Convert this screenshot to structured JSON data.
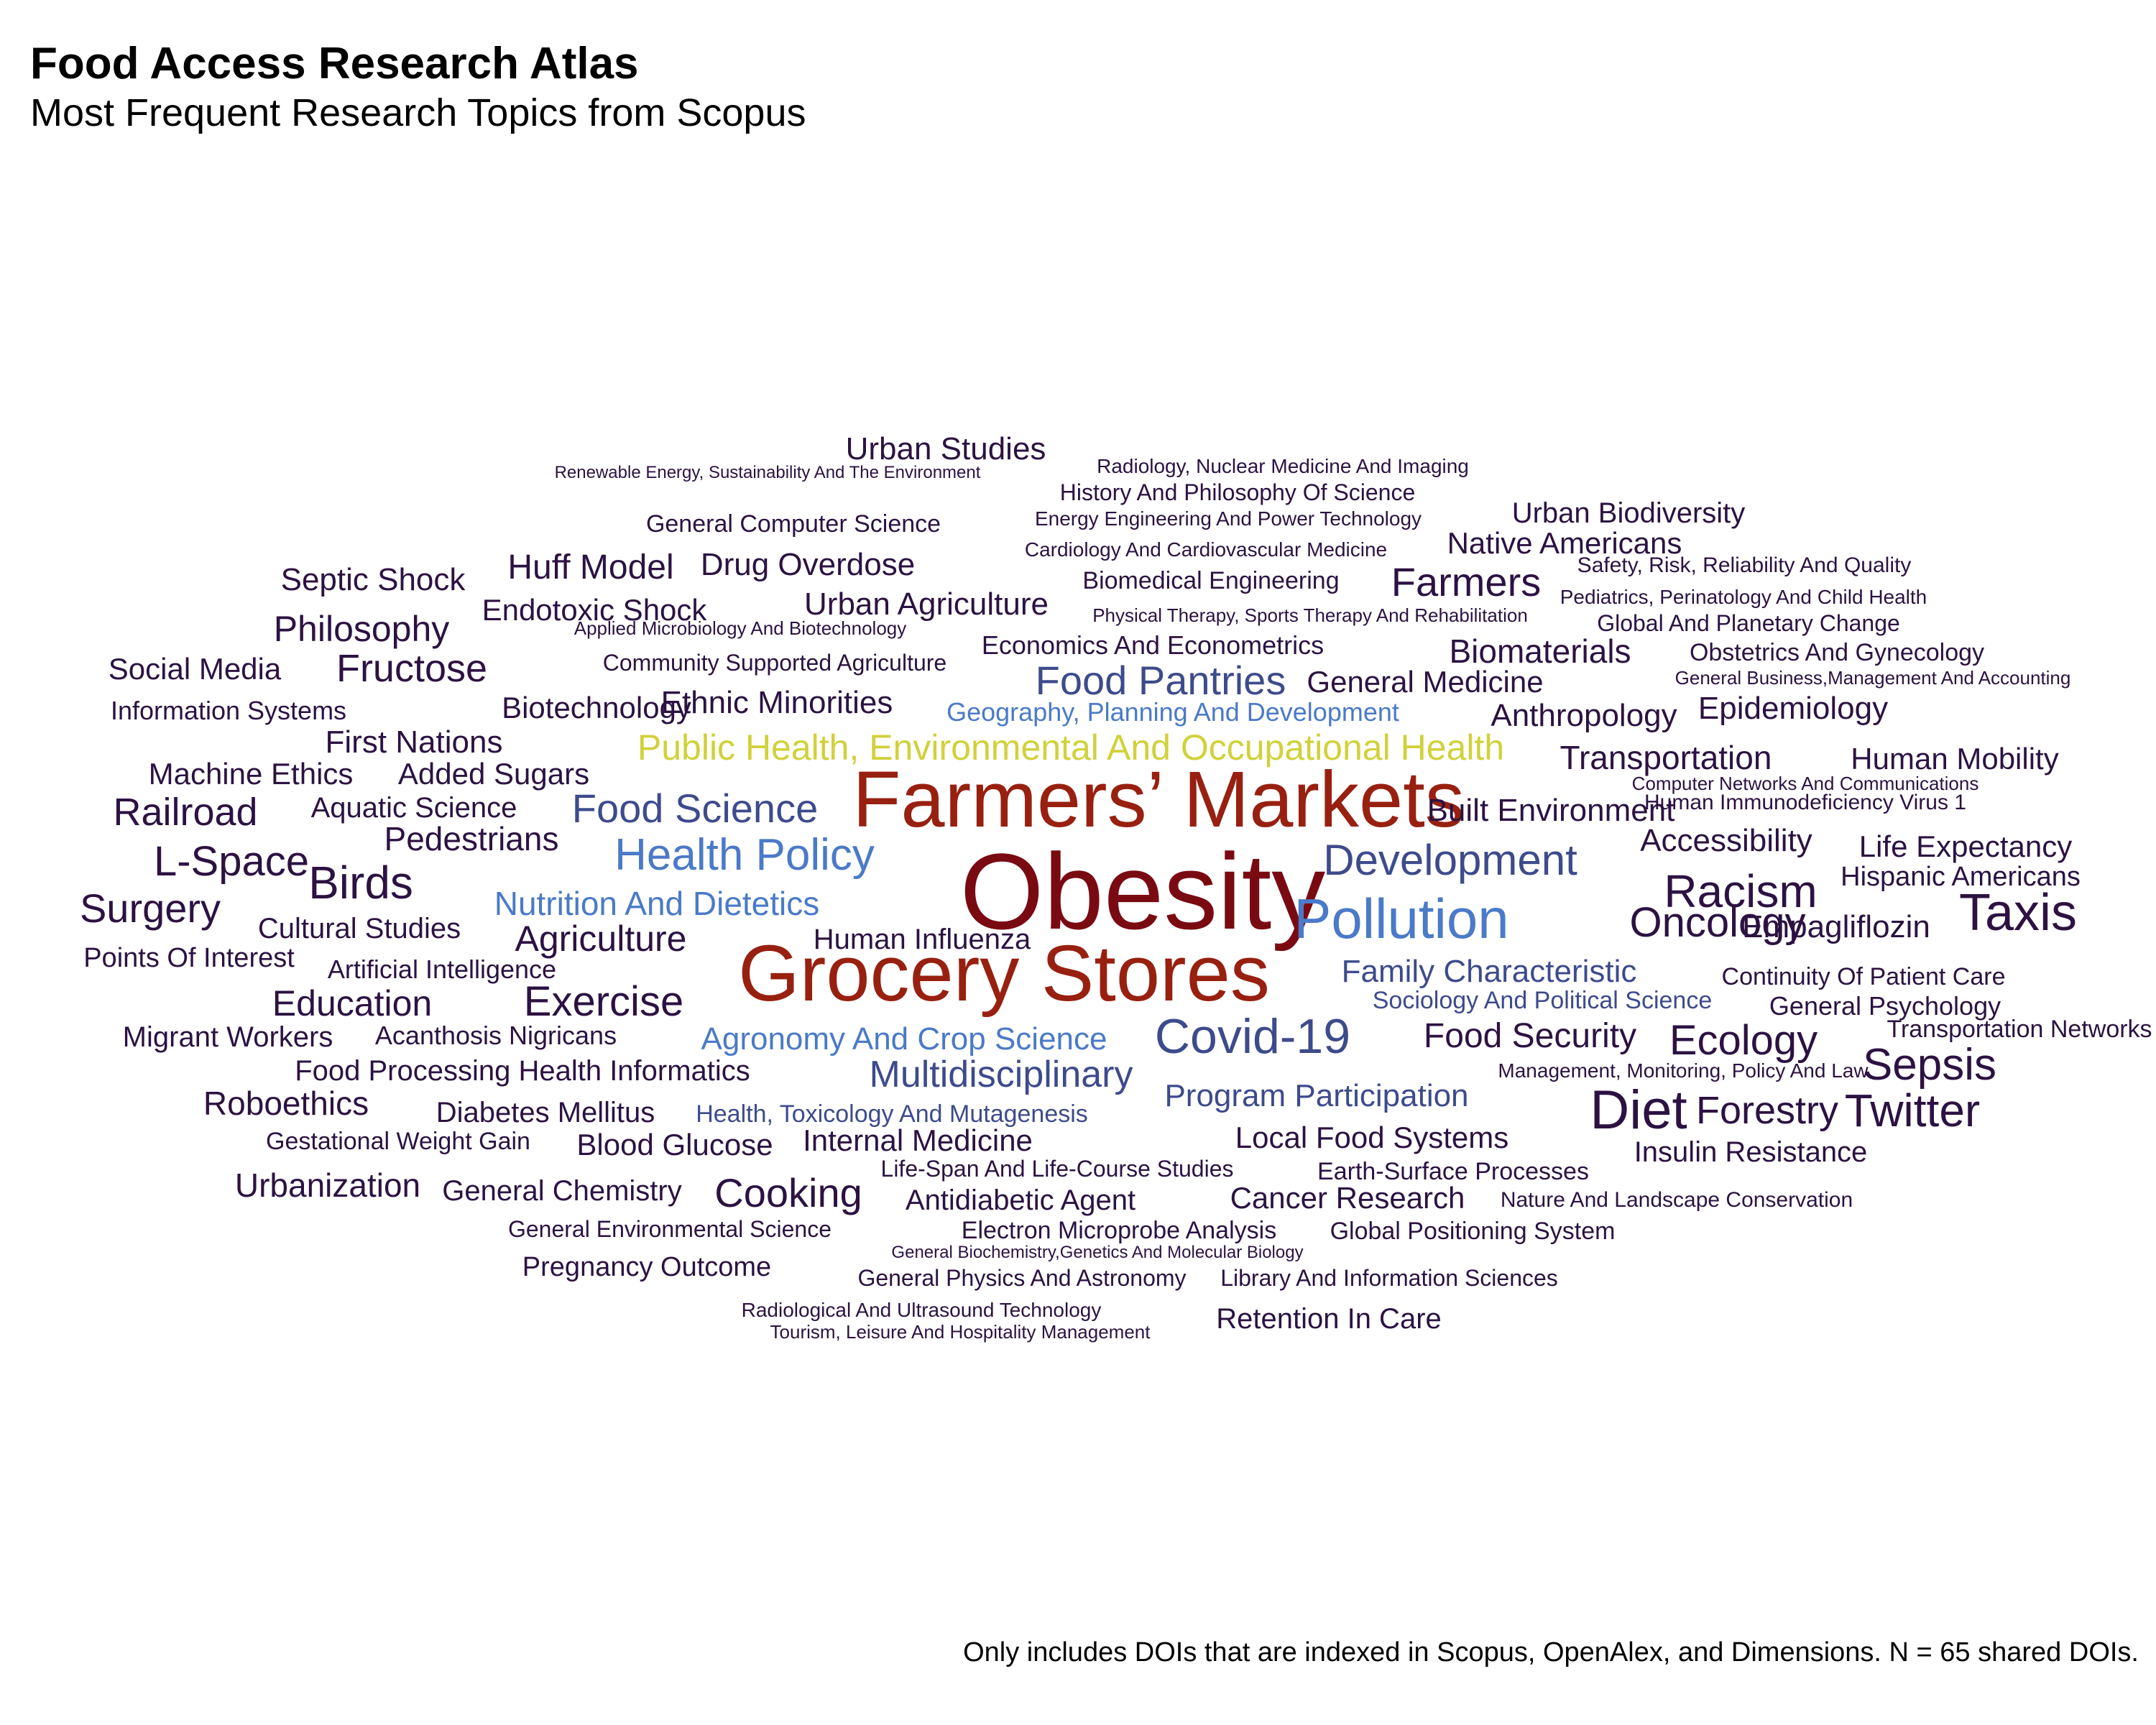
{
  "header": {
    "title": "Food Access Research Atlas",
    "subtitle": "Most Frequent Research Topics from Scopus"
  },
  "footer": {
    "caption": "Only includes DOIs that are indexed in Scopus, OpenAlex, and Dimensions. N = 65 shared DOIs."
  },
  "colors": {
    "largest": "#7a0a12",
    "large": "#982010",
    "yellow": "#d1d13a",
    "blue_light": "#4a7ac8",
    "blue_dark": "#3d4b8c",
    "small": "#2c1242"
  },
  "chart_data": {
    "type": "wordcloud",
    "words": [
      {
        "text": "Obesity",
        "size": 150,
        "color": "#7a0a12"
      },
      {
        "text": "Farmers’ Markets",
        "size": 110,
        "color": "#982010"
      },
      {
        "text": "Grocery Stores",
        "size": 110,
        "color": "#982010"
      },
      {
        "text": "Public Health, Environmental And Occupational Health",
        "size": 50,
        "color": "#d1d13a"
      },
      {
        "text": "Pollution",
        "size": 78,
        "color": "#4a7ac8"
      },
      {
        "text": "Health Policy",
        "size": 62,
        "color": "#4a7ac8"
      },
      {
        "text": "Development",
        "size": 60,
        "color": "#3d4b8c"
      },
      {
        "text": "Covid-19",
        "size": 68,
        "color": "#3d4b8c"
      },
      {
        "text": "Food Pantries",
        "size": 56,
        "color": "#3d4b8c"
      },
      {
        "text": "Food Science",
        "size": 56,
        "color": "#3d4b8c"
      },
      {
        "text": "Multidisciplinary",
        "size": 52,
        "color": "#3d4b8c"
      },
      {
        "text": "Nutrition And Dietetics",
        "size": 46,
        "color": "#4a7ac8"
      },
      {
        "text": "Agronomy And Crop Science",
        "size": 44,
        "color": "#4a7ac8"
      },
      {
        "text": "Family Characteristic",
        "size": 44,
        "color": "#3d4b8c"
      },
      {
        "text": "Program Participation",
        "size": 44,
        "color": "#3d4b8c"
      },
      {
        "text": "Geography, Planning And Development",
        "size": 36,
        "color": "#4a7ac8"
      },
      {
        "text": "Health, Toxicology And Mutagenesis",
        "size": 34,
        "color": "#3d4b8c"
      },
      {
        "text": "Sociology And Political Science",
        "size": 34,
        "color": "#3d4b8c"
      },
      {
        "text": "Diet",
        "size": 76,
        "color": "#2c1242"
      },
      {
        "text": "Taxis",
        "size": 72,
        "color": "#2c1242"
      },
      {
        "text": "Twitter",
        "size": 64,
        "color": "#2c1242"
      },
      {
        "text": "Racism",
        "size": 64,
        "color": "#2c1242"
      },
      {
        "text": "Birds",
        "size": 64,
        "color": "#2c1242"
      },
      {
        "text": "Sepsis",
        "size": 62,
        "color": "#2c1242"
      },
      {
        "text": "Oncology",
        "size": 58,
        "color": "#2c1242"
      },
      {
        "text": "Ecology",
        "size": 58,
        "color": "#2c1242"
      },
      {
        "text": "Exercise",
        "size": 58,
        "color": "#2c1242"
      },
      {
        "text": "L-Space",
        "size": 58,
        "color": "#2c1242"
      },
      {
        "text": "Cooking",
        "size": 56,
        "color": "#2c1242"
      },
      {
        "text": "Farmers",
        "size": 56,
        "color": "#2c1242"
      },
      {
        "text": "Railroad",
        "size": 54,
        "color": "#2c1242"
      },
      {
        "text": "Surgery",
        "size": 56,
        "color": "#2c1242"
      },
      {
        "text": "Fructose",
        "size": 54,
        "color": "#2c1242"
      },
      {
        "text": "Forestry",
        "size": 54,
        "color": "#2c1242"
      },
      {
        "text": "Education",
        "size": 50,
        "color": "#2c1242"
      },
      {
        "text": "Agriculture",
        "size": 50,
        "color": "#2c1242"
      },
      {
        "text": "Philosophy",
        "size": 50,
        "color": "#2c1242"
      },
      {
        "text": "Huff Model",
        "size": 48,
        "color": "#2c1242"
      },
      {
        "text": "Food Security",
        "size": 48,
        "color": "#2c1242"
      },
      {
        "text": "Biomaterials",
        "size": 46,
        "color": "#2c1242"
      },
      {
        "text": "Pedestrians",
        "size": 46,
        "color": "#2c1242"
      },
      {
        "text": "Roboethics",
        "size": 46,
        "color": "#2c1242"
      },
      {
        "text": "Urbanization",
        "size": 46,
        "color": "#2c1242"
      },
      {
        "text": "Transportation",
        "size": 46,
        "color": "#2c1242"
      },
      {
        "text": "Ethnic Minorities",
        "size": 44,
        "color": "#2c1242"
      },
      {
        "text": "Anthropology",
        "size": 44,
        "color": "#2c1242"
      },
      {
        "text": "Septic Shock",
        "size": 44,
        "color": "#2c1242"
      },
      {
        "text": "Urban Studies",
        "size": 44,
        "color": "#2c1242"
      },
      {
        "text": "Urban Agriculture",
        "size": 44,
        "color": "#2c1242"
      },
      {
        "text": "First Nations",
        "size": 44,
        "color": "#2c1242"
      },
      {
        "text": "Drug Overdose",
        "size": 44,
        "color": "#2c1242"
      },
      {
        "text": "Accessibility",
        "size": 44,
        "color": "#2c1242"
      },
      {
        "text": "Epidemiology",
        "size": 44,
        "color": "#2c1242"
      },
      {
        "text": "Empagliflozin",
        "size": 44,
        "color": "#2c1242"
      },
      {
        "text": "Built Environment",
        "size": 44,
        "color": "#2c1242"
      },
      {
        "text": "Blood Glucose",
        "size": 42,
        "color": "#2c1242"
      },
      {
        "text": "General Medicine",
        "size": 42,
        "color": "#2c1242"
      },
      {
        "text": "Added Sugars",
        "size": 42,
        "color": "#2c1242"
      },
      {
        "text": "Native Americans",
        "size": 42,
        "color": "#2c1242"
      },
      {
        "text": "Life Expectancy",
        "size": 42,
        "color": "#2c1242"
      },
      {
        "text": "Human Mobility",
        "size": 42,
        "color": "#2c1242"
      },
      {
        "text": "Internal Medicine",
        "size": 42,
        "color": "#2c1242"
      },
      {
        "text": "Local Food Systems",
        "size": 42,
        "color": "#2c1242"
      },
      {
        "text": "Cancer Research",
        "size": 42,
        "color": "#2c1242"
      },
      {
        "text": "Social Media",
        "size": 42,
        "color": "#2c1242"
      },
      {
        "text": "Machine Ethics",
        "size": 42,
        "color": "#2c1242"
      },
      {
        "text": "Endotoxic Shock",
        "size": 42,
        "color": "#2c1242"
      },
      {
        "text": "Biotechnology",
        "size": 42,
        "color": "#2c1242"
      },
      {
        "text": "Urban Biodiversity",
        "size": 40,
        "color": "#2c1242"
      },
      {
        "text": "Insulin Resistance",
        "size": 40,
        "color": "#2c1242"
      },
      {
        "text": "Human Influenza",
        "size": 40,
        "color": "#2c1242"
      },
      {
        "text": "Aquatic Science",
        "size": 40,
        "color": "#2c1242"
      },
      {
        "text": "Cultural Studies",
        "size": 40,
        "color": "#2c1242"
      },
      {
        "text": "Food Processing Health Informatics",
        "size": 40,
        "color": "#2c1242"
      },
      {
        "text": "Migrant Workers",
        "size": 40,
        "color": "#2c1242"
      },
      {
        "text": "Diabetes Mellitus",
        "size": 40,
        "color": "#2c1242"
      },
      {
        "text": "Points Of Interest",
        "size": 38,
        "color": "#2c1242"
      },
      {
        "text": "Antidiabetic Agent",
        "size": 40,
        "color": "#2c1242"
      },
      {
        "text": "General Chemistry",
        "size": 40,
        "color": "#2c1242"
      },
      {
        "text": "Retention In Care",
        "size": 40,
        "color": "#2c1242"
      },
      {
        "text": "Hispanic Americans",
        "size": 38,
        "color": "#2c1242"
      },
      {
        "text": "Pregnancy Outcome",
        "size": 38,
        "color": "#2c1242"
      },
      {
        "text": "Acanthosis Nigricans",
        "size": 36,
        "color": "#2c1242"
      },
      {
        "text": "Information Systems",
        "size": 36,
        "color": "#2c1242"
      },
      {
        "text": "Artificial Intelligence",
        "size": 36,
        "color": "#2c1242"
      },
      {
        "text": "General Psychology",
        "size": 36,
        "color": "#2c1242"
      },
      {
        "text": "Continuity Of Patient Care",
        "size": 34,
        "color": "#2c1242"
      },
      {
        "text": "Gestational Weight Gain",
        "size": 34,
        "color": "#2c1242"
      },
      {
        "text": "Earth-Surface Processes",
        "size": 34,
        "color": "#2c1242"
      },
      {
        "text": "Economics And Econometrics",
        "size": 36,
        "color": "#2c1242"
      },
      {
        "text": "Obstetrics And Gynecology",
        "size": 34,
        "color": "#2c1242"
      },
      {
        "text": "Transportation Networks",
        "size": 34,
        "color": "#2c1242"
      },
      {
        "text": "General Computer Science",
        "size": 34,
        "color": "#2c1242"
      },
      {
        "text": "Global Positioning System",
        "size": 34,
        "color": "#2c1242"
      },
      {
        "text": "Biomedical Engineering",
        "size": 34,
        "color": "#2c1242"
      },
      {
        "text": "Electron Microprobe Analysis",
        "size": 34,
        "color": "#2c1242"
      },
      {
        "text": "Global And Planetary Change",
        "size": 32,
        "color": "#2c1242"
      },
      {
        "text": "General Physics And Astronomy",
        "size": 32,
        "color": "#2c1242"
      },
      {
        "text": "Library And Information Sciences",
        "size": 32,
        "color": "#2c1242"
      },
      {
        "text": "Community Supported Agriculture",
        "size": 32,
        "color": "#2c1242"
      },
      {
        "text": "General Environmental Science",
        "size": 32,
        "color": "#2c1242"
      },
      {
        "text": "Life-Span And Life-Course Studies",
        "size": 32,
        "color": "#2c1242"
      },
      {
        "text": "History And Philosophy Of Science",
        "size": 32,
        "color": "#2c1242"
      },
      {
        "text": "Management, Monitoring, Policy And Law",
        "size": 28,
        "color": "#2c1242"
      },
      {
        "text": "Human Immunodeficiency Virus 1",
        "size": 30,
        "color": "#2c1242"
      },
      {
        "text": "Nature And Landscape Conservation",
        "size": 30,
        "color": "#2c1242"
      },
      {
        "text": "Safety, Risk, Reliability And Quality",
        "size": 30,
        "color": "#2c1242"
      },
      {
        "text": "Pediatrics, Perinatology And Child Health",
        "size": 28,
        "color": "#2c1242"
      },
      {
        "text": "Radiology, Nuclear Medicine And Imaging",
        "size": 28,
        "color": "#2c1242"
      },
      {
        "text": "Energy Engineering And Power Technology",
        "size": 28,
        "color": "#2c1242"
      },
      {
        "text": "Cardiology And Cardiovascular Medicine",
        "size": 28,
        "color": "#2c1242"
      },
      {
        "text": "Physical Therapy, Sports Therapy And Rehabilitation",
        "size": 26,
        "color": "#2c1242"
      },
      {
        "text": "Radiological And Ultrasound Technology",
        "size": 28,
        "color": "#2c1242"
      },
      {
        "text": "Computer Networks And Communications",
        "size": 26,
        "color": "#2c1242"
      },
      {
        "text": "General Business,Management And Accounting",
        "size": 26,
        "color": "#2c1242"
      },
      {
        "text": "Tourism, Leisure And Hospitality Management",
        "size": 26,
        "color": "#2c1242"
      },
      {
        "text": "Applied Microbiology And Biotechnology",
        "size": 26,
        "color": "#2c1242"
      },
      {
        "text": "Renewable Energy, Sustainability And The Environment",
        "size": 24,
        "color": "#2c1242"
      },
      {
        "text": "General Biochemistry,Genetics And Molecular Biology",
        "size": 24,
        "color": "#2c1242"
      }
    ]
  }
}
